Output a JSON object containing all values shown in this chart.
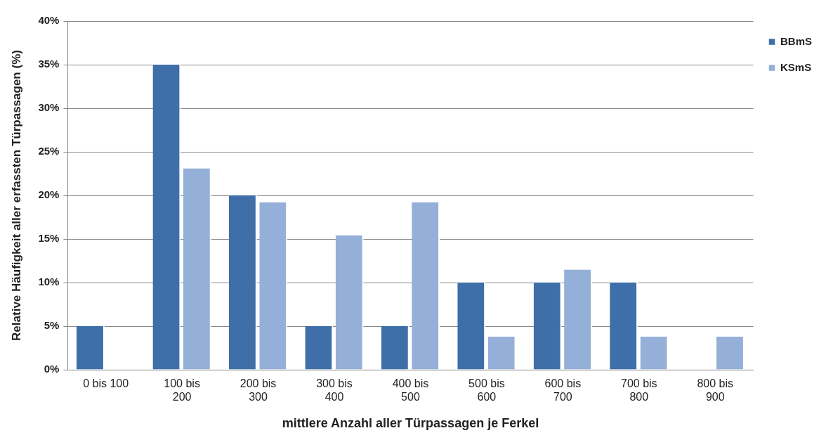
{
  "chart_data": {
    "type": "bar",
    "xlabel": "mittlere Anzahl aller Türpassagen je Ferkel",
    "ylabel": "Relative Häufigkeit aller erfassten Türpassagen (%)",
    "categories": [
      "0 bis 100",
      "100 bis 200",
      "200 bis 300",
      "300 bis 400",
      "400 bis 500",
      "500 bis 600",
      "600 bis 700",
      "700 bis 800",
      "800 bis 900"
    ],
    "series": [
      {
        "name": "BBmS",
        "color": "#3e6fa8",
        "values": [
          5,
          35,
          20,
          5,
          5,
          10,
          10,
          10,
          0
        ]
      },
      {
        "name": "KSmS",
        "color": "#95b0d8",
        "values": [
          0,
          23.1,
          19.2,
          15.4,
          19.2,
          3.8,
          11.5,
          3.8,
          3.8
        ]
      }
    ],
    "ylim": [
      0,
      40
    ],
    "yticks": [
      {
        "value": 0,
        "label": "0%"
      },
      {
        "value": 5,
        "label": "5%"
      },
      {
        "value": 10,
        "label": "10%"
      },
      {
        "value": 15,
        "label": "15%"
      },
      {
        "value": 20,
        "label": "20%"
      },
      {
        "value": 25,
        "label": "25%"
      },
      {
        "value": 30,
        "label": "30%"
      },
      {
        "value": 35,
        "label": "35%"
      },
      {
        "value": 40,
        "label": "40%"
      }
    ],
    "grid": "y",
    "legend": "top right"
  }
}
